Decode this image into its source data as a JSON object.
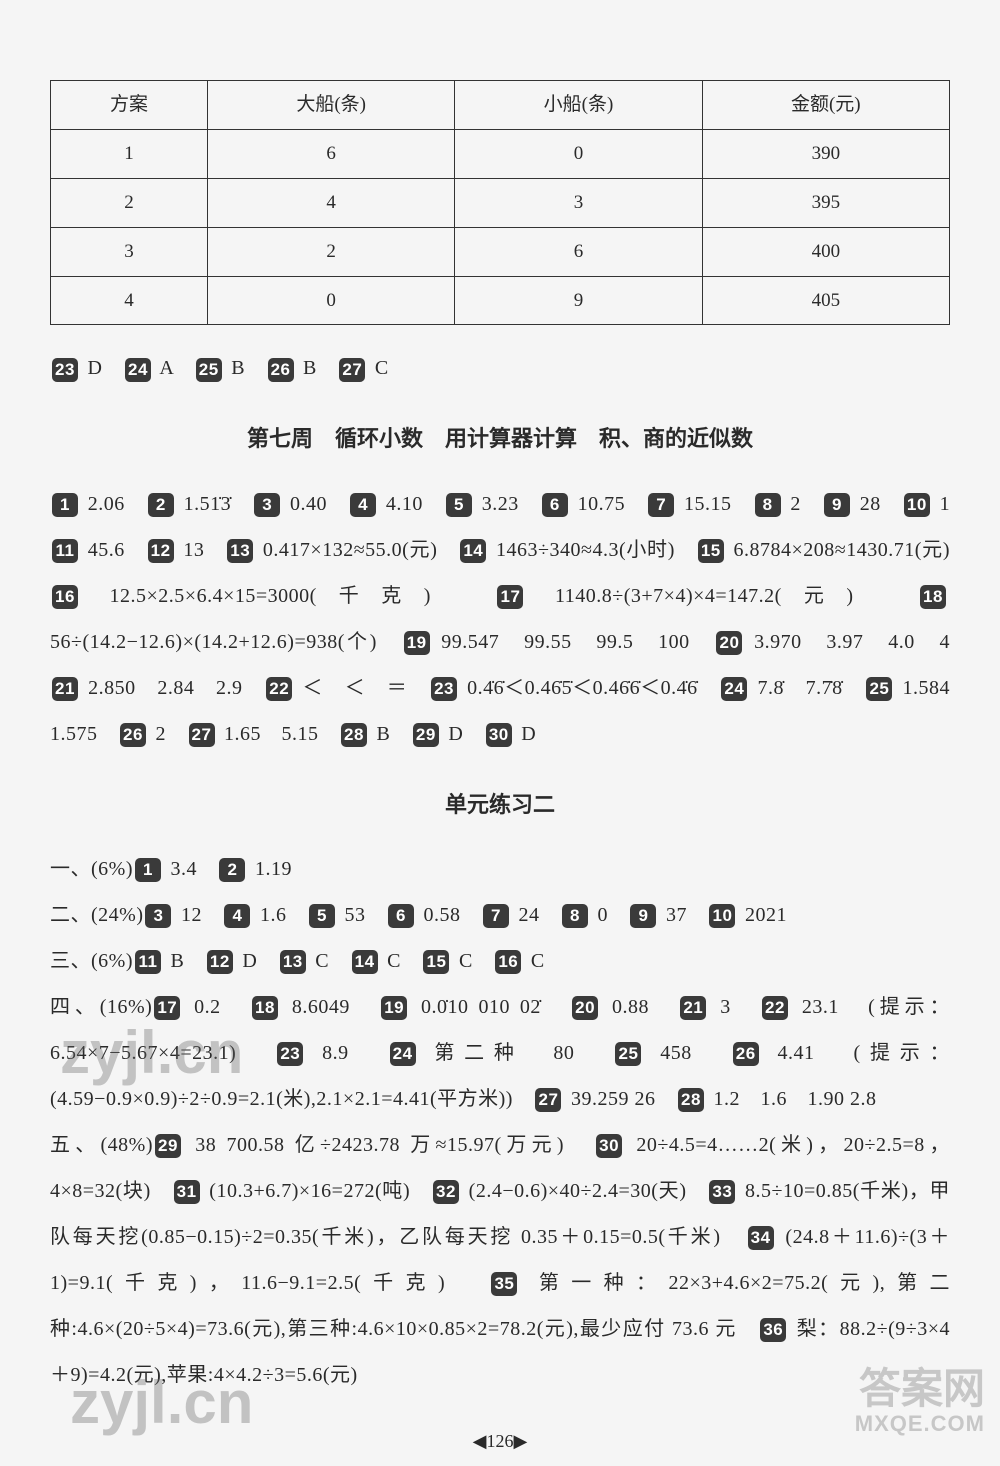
{
  "table": {
    "headers": [
      "方案",
      "大船(条)",
      "小船(条)",
      "金额(元)"
    ],
    "rows": [
      [
        "1",
        "6",
        "0",
        "390"
      ],
      [
        "2",
        "4",
        "3",
        "395"
      ],
      [
        "3",
        "2",
        "6",
        "400"
      ],
      [
        "4",
        "0",
        "9",
        "405"
      ]
    ]
  },
  "row_answers": [
    {
      "n": "23",
      "a": "D"
    },
    {
      "n": "24",
      "a": "A"
    },
    {
      "n": "25",
      "a": "B"
    },
    {
      "n": "26",
      "a": "B"
    },
    {
      "n": "27",
      "a": "C"
    }
  ],
  "section1_title": "第七周　循环小数　用计算器计算　积、商的近似数",
  "section1_items": [
    {
      "n": "1",
      "a": "2.06"
    },
    {
      "n": "2",
      "a": "1.51̇3̇"
    },
    {
      "n": "3",
      "a": "0.40"
    },
    {
      "n": "4",
      "a": "4.10"
    },
    {
      "n": "5",
      "a": "3.23"
    },
    {
      "n": "6",
      "a": "10.75"
    },
    {
      "n": "7",
      "a": "15.15"
    },
    {
      "n": "8",
      "a": "2"
    },
    {
      "n": "9",
      "a": "28"
    },
    {
      "n": "10",
      "a": "1"
    },
    {
      "n": "11",
      "a": "45.6"
    },
    {
      "n": "12",
      "a": "13"
    },
    {
      "n": "13",
      "a": "0.417×132≈55.0(元)"
    },
    {
      "n": "14",
      "a": "1463÷340≈4.3(小时)"
    },
    {
      "n": "15",
      "a": "6.8784×208≈1430.71(元)"
    },
    {
      "n": "16",
      "a": "12.5×2.5×6.4×15=3000(千克)"
    },
    {
      "n": "17",
      "a": "1140.8÷(3+7×4)×4=147.2(元)"
    },
    {
      "n": "18",
      "a": "56÷(14.2−12.6)×(14.2+12.6)=938(个)"
    },
    {
      "n": "19",
      "a": "99.547　99.55　99.5　100"
    },
    {
      "n": "20",
      "a": "3.970　3.97　4.0　4"
    },
    {
      "n": "21",
      "a": "2.850　2.84　2.9"
    },
    {
      "n": "22",
      "a": "＜　＜　＝"
    },
    {
      "n": "23",
      "a": "0.4̇6̇＜0.46̇5̇＜0.46̇6̇＜0.4̇6̇"
    },
    {
      "n": "24",
      "a": "7.8̇　7.7̇8̇"
    },
    {
      "n": "25",
      "a": "1.584　1.575"
    },
    {
      "n": "26",
      "a": "2"
    },
    {
      "n": "27",
      "a": "1.65　5.15"
    },
    {
      "n": "28",
      "a": "B"
    },
    {
      "n": "29",
      "a": "D"
    },
    {
      "n": "30",
      "a": "D"
    }
  ],
  "section2_title": "单元练习二",
  "section2_groups": [
    {
      "prefix": "一、(6%)",
      "items": [
        {
          "n": "1",
          "a": "3.4"
        },
        {
          "n": "2",
          "a": "1.19"
        }
      ]
    },
    {
      "prefix": "二、(24%)",
      "items": [
        {
          "n": "3",
          "a": "12"
        },
        {
          "n": "4",
          "a": "1.6"
        },
        {
          "n": "5",
          "a": "53"
        },
        {
          "n": "6",
          "a": "0.58"
        },
        {
          "n": "7",
          "a": "24"
        },
        {
          "n": "8",
          "a": "0"
        },
        {
          "n": "9",
          "a": "37"
        },
        {
          "n": "10",
          "a": "2021"
        }
      ]
    },
    {
      "prefix": "三、(6%)",
      "items": [
        {
          "n": "11",
          "a": "B"
        },
        {
          "n": "12",
          "a": "D"
        },
        {
          "n": "13",
          "a": "C"
        },
        {
          "n": "14",
          "a": "C"
        },
        {
          "n": "15",
          "a": "C"
        },
        {
          "n": "16",
          "a": "C"
        }
      ]
    },
    {
      "prefix": "四、(16%)",
      "items": [
        {
          "n": "17",
          "a": "0.2"
        },
        {
          "n": "18",
          "a": "8.6049"
        },
        {
          "n": "19",
          "a": "0.0̇10 010 02̇"
        },
        {
          "n": "20",
          "a": "0.88"
        },
        {
          "n": "21",
          "a": "3"
        },
        {
          "n": "22",
          "a": "23.1　(提示：6.54×7−5.67×4=23.1)"
        },
        {
          "n": "23",
          "a": "8.9"
        },
        {
          "n": "24",
          "a": "第二种　80"
        },
        {
          "n": "25",
          "a": "458"
        },
        {
          "n": "26",
          "a": "4.41　(提示：(4.59−0.9×0.9)÷2÷0.9=2.1(米),2.1×2.1=4.41(平方米))"
        },
        {
          "n": "27",
          "a": "39.259 26"
        },
        {
          "n": "28",
          "a": "1.2　1.6　1.90 2.8"
        }
      ]
    },
    {
      "prefix": "五、(48%)",
      "items": [
        {
          "n": "29",
          "a": "38 700.58 亿÷2423.78 万≈15.97(万元)"
        },
        {
          "n": "30",
          "a": "20÷4.5=4……2(米)，20÷2.5=8，4×8=32(块)"
        },
        {
          "n": "31",
          "a": "(10.3+6.7)×16=272(吨)"
        },
        {
          "n": "32",
          "a": "(2.4−0.6)×40÷2.4=30(天)"
        },
        {
          "n": "33",
          "a": "8.5÷10=0.85(千米)，甲队每天挖(0.85−0.15)÷2=0.35(千米)，乙队每天挖 0.35＋0.15=0.5(千米)"
        },
        {
          "n": "34",
          "a": "(24.8＋11.6)÷(3＋1)=9.1(千克)，11.6−9.1=2.5(千克)"
        },
        {
          "n": "35",
          "a": "第一种：22×3+4.6×2=75.2(元),第二种:4.6×(20÷5×4)=73.6(元),第三种:4.6×10×0.85×2=78.2(元),最少应付 73.6 元"
        },
        {
          "n": "36",
          "a": "梨：88.2÷(9÷3×4＋9)=4.2(元),苹果:4×4.2÷3=5.6(元)"
        }
      ]
    }
  ],
  "page_number": "126",
  "watermark": "zyjl.cn",
  "corner_mark": "答案网",
  "corner_sub": "MXQE.COM"
}
